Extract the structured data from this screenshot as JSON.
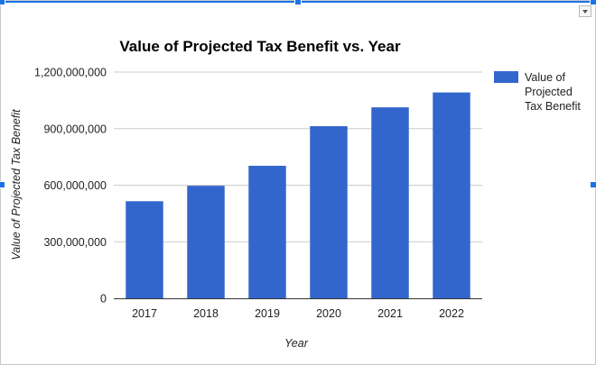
{
  "chart_data": {
    "type": "bar",
    "title": "Value of Projected Tax Benefit vs. Year",
    "xlabel": "Year",
    "ylabel": "Value of Projected Tax Benefit",
    "categories": [
      "2017",
      "2018",
      "2019",
      "2020",
      "2021",
      "2022"
    ],
    "series": [
      {
        "name": "Value of Projected Tax Benefit",
        "color": "#3366cc",
        "values": [
          515000000,
          597000000,
          703000000,
          913000000,
          1013000000,
          1092000000
        ]
      }
    ],
    "ylim": [
      0,
      1200000000
    ],
    "yticks": [
      0,
      300000000,
      600000000,
      900000000,
      1200000000
    ],
    "ytick_labels": [
      "0",
      "300,000,000",
      "600,000,000",
      "900,000,000",
      "1,200,000,000"
    ],
    "grid": true,
    "legend": "right",
    "legend_lines": [
      "Value of",
      "Projected",
      "Tax Benefit"
    ]
  }
}
